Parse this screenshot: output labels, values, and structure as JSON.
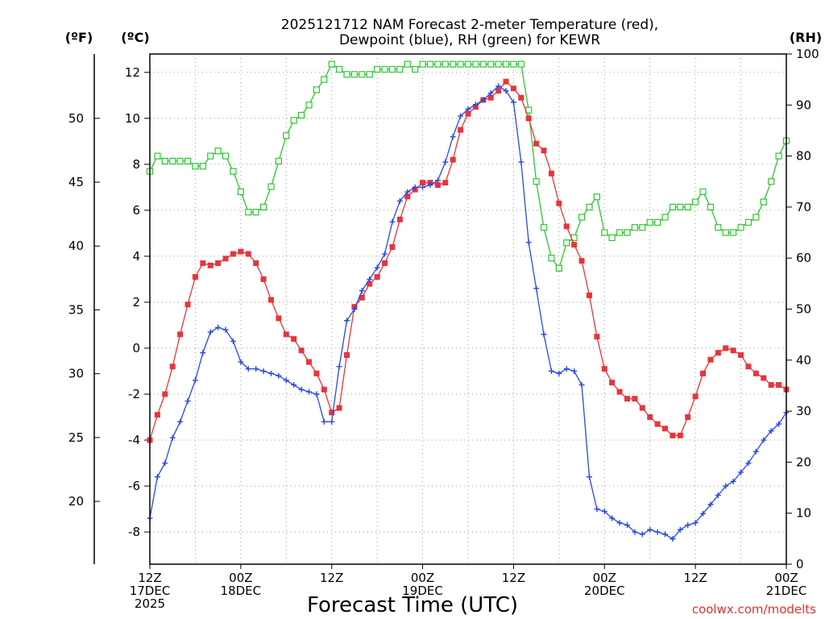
{
  "chart_data": {
    "type": "line",
    "title": "2025121712 NAM Forecast 2-meter Temperature (red),",
    "subtitle": "Dewpoint (blue), RH (green) for KEWR",
    "xlabel": "Forecast Time (UTC)",
    "unit_f": "(ºF)",
    "unit_c": "(ºC)",
    "unit_rh": "(RH)",
    "credit": "coolwx.com/modelts",
    "x_unit": "forecast hour",
    "xlim": [
      0,
      84
    ],
    "ylim_c": [
      -9.4,
      12.8
    ],
    "ylim_rh": [
      0,
      100
    ],
    "y_ticks_c": [
      -8,
      -6,
      -4,
      -2,
      0,
      2,
      4,
      6,
      8,
      10,
      12
    ],
    "y_ticks_f": [
      20,
      25,
      30,
      35,
      40,
      45,
      50
    ],
    "y_ticks_rh": [
      0,
      10,
      20,
      30,
      40,
      50,
      60,
      70,
      80,
      90,
      100
    ],
    "x_ticks": [
      {
        "hour": 0,
        "lines": [
          "12Z",
          "17DEC",
          "2025"
        ]
      },
      {
        "hour": 12,
        "lines": [
          "00Z",
          "18DEC"
        ]
      },
      {
        "hour": 24,
        "lines": [
          "12Z"
        ]
      },
      {
        "hour": 36,
        "lines": [
          "00Z",
          "19DEC"
        ]
      },
      {
        "hour": 48,
        "lines": [
          "12Z"
        ]
      },
      {
        "hour": 60,
        "lines": [
          "00Z",
          "20DEC"
        ]
      },
      {
        "hour": 72,
        "lines": [
          "12Z"
        ]
      },
      {
        "hour": 84,
        "lines": [
          "00Z",
          "21DEC"
        ]
      }
    ],
    "series": [
      {
        "name": "2-meter Temperature",
        "unit": "°C",
        "color": "#e8343a",
        "marker": "filled-square",
        "values": [
          -4.0,
          -2.9,
          -2.0,
          -0.8,
          0.6,
          1.9,
          3.1,
          3.7,
          3.6,
          3.7,
          3.9,
          4.1,
          4.2,
          4.1,
          3.7,
          3.0,
          2.1,
          1.3,
          0.6,
          0.4,
          -0.1,
          -0.6,
          -1.1,
          -1.8,
          -2.8,
          -2.6,
          -0.3,
          1.8,
          2.2,
          2.8,
          3.1,
          3.7,
          4.4,
          5.6,
          6.6,
          6.9,
          7.2,
          7.2,
          7.1,
          7.2,
          8.2,
          9.5,
          10.2,
          10.5,
          10.8,
          10.9,
          11.2,
          11.6,
          11.3,
          10.9,
          10.0,
          8.9,
          8.6,
          7.6,
          6.3,
          5.3,
          4.5,
          3.8,
          2.3,
          0.5,
          -0.9,
          -1.5,
          -1.9,
          -2.2,
          -2.2,
          -2.6,
          -3.0,
          -3.3,
          -3.5,
          -3.8,
          -3.8,
          -3.0,
          -2.1,
          -1.1,
          -0.5,
          -0.2,
          0.0,
          -0.1,
          -0.3,
          -0.8,
          -1.1,
          -1.3,
          -1.6,
          -1.6,
          -1.8
        ]
      },
      {
        "name": "Dewpoint",
        "unit": "°C",
        "color": "#2a48e0",
        "marker": "plus",
        "values": [
          -7.4,
          -5.6,
          -5.0,
          -3.9,
          -3.2,
          -2.3,
          -1.4,
          -0.2,
          0.7,
          0.9,
          0.8,
          0.3,
          -0.6,
          -0.9,
          -0.9,
          -1.0,
          -1.1,
          -1.2,
          -1.4,
          -1.6,
          -1.8,
          -1.9,
          -2.0,
          -3.2,
          -3.2,
          -0.8,
          1.2,
          1.7,
          2.5,
          3.0,
          3.5,
          4.1,
          5.5,
          6.4,
          6.8,
          7.0,
          7.0,
          7.1,
          7.3,
          8.1,
          9.2,
          10.1,
          10.4,
          10.6,
          10.8,
          11.1,
          11.4,
          11.2,
          10.7,
          8.1,
          4.6,
          2.6,
          0.6,
          -1.0,
          -1.1,
          -0.9,
          -1.0,
          -1.6,
          -5.6,
          -7.0,
          -7.1,
          -7.4,
          -7.6,
          -7.7,
          -8.0,
          -8.1,
          -7.9,
          -8.0,
          -8.1,
          -8.3,
          -7.9,
          -7.7,
          -7.6,
          -7.2,
          -6.8,
          -6.4,
          -6.0,
          -5.8,
          -5.4,
          -5.0,
          -4.5,
          -4.0,
          -3.6,
          -3.3,
          -2.8
        ]
      },
      {
        "name": "Relative Humidity",
        "unit": "%",
        "color": "#2cc72e",
        "marker": "open-square",
        "values": [
          77,
          80,
          79,
          79,
          79,
          79,
          78,
          78,
          80,
          81,
          80,
          77,
          73,
          69,
          69,
          70,
          74,
          79,
          84,
          87,
          88,
          90,
          93,
          95,
          98,
          97,
          96,
          96,
          96,
          96,
          97,
          97,
          97,
          97,
          98,
          97,
          98,
          98,
          98,
          98,
          98,
          98,
          98,
          98,
          98,
          98,
          98,
          98,
          98,
          98,
          89,
          75,
          66,
          60,
          58,
          63,
          64,
          68,
          70,
          72,
          65,
          64,
          65,
          65,
          66,
          66,
          67,
          67,
          68,
          70,
          70,
          70,
          71,
          73,
          70,
          66,
          65,
          65,
          66,
          67,
          68,
          71,
          75,
          80,
          83
        ]
      }
    ]
  }
}
